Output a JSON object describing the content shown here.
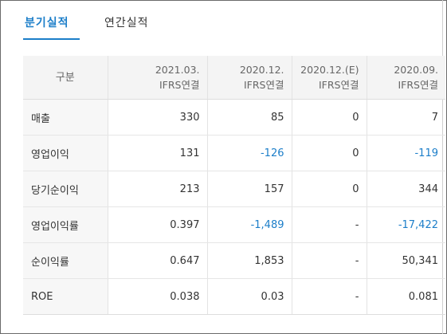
{
  "tabs": [
    {
      "label": "분기실적",
      "active": true
    },
    {
      "label": "연간실적",
      "active": false
    }
  ],
  "table": {
    "header_first": "구분",
    "columns": [
      {
        "line1": "2021.03.",
        "line2": "IFRS연결"
      },
      {
        "line1": "2020.12.",
        "line2": "IFRS연결"
      },
      {
        "line1": "2020.12.(E)",
        "line2": "IFRS연결"
      },
      {
        "line1": "2020.09.",
        "line2": "IFRS연결"
      }
    ],
    "rows": [
      {
        "label": "매출",
        "values": [
          "330",
          "85",
          "0",
          "7"
        ],
        "negative": [
          false,
          false,
          false,
          false
        ]
      },
      {
        "label": "영업이익",
        "values": [
          "131",
          "-126",
          "0",
          "-119"
        ],
        "negative": [
          false,
          true,
          false,
          true
        ]
      },
      {
        "label": "당기순이익",
        "values": [
          "213",
          "157",
          "0",
          "344"
        ],
        "negative": [
          false,
          false,
          false,
          false
        ]
      },
      {
        "label": "영업이익률",
        "values": [
          "0.397",
          "-1,489",
          "-",
          "-17,422"
        ],
        "negative": [
          false,
          true,
          false,
          true
        ]
      },
      {
        "label": "순이익률",
        "values": [
          "0.647",
          "1,853",
          "-",
          "50,341"
        ],
        "negative": [
          false,
          false,
          false,
          false
        ]
      },
      {
        "label": "ROE",
        "values": [
          "0.038",
          "0.03",
          "-",
          "0.081"
        ],
        "negative": [
          false,
          false,
          false,
          false
        ]
      }
    ]
  },
  "colors": {
    "accent": "#1c7ec9",
    "header_bg": "#f4f4f4"
  }
}
